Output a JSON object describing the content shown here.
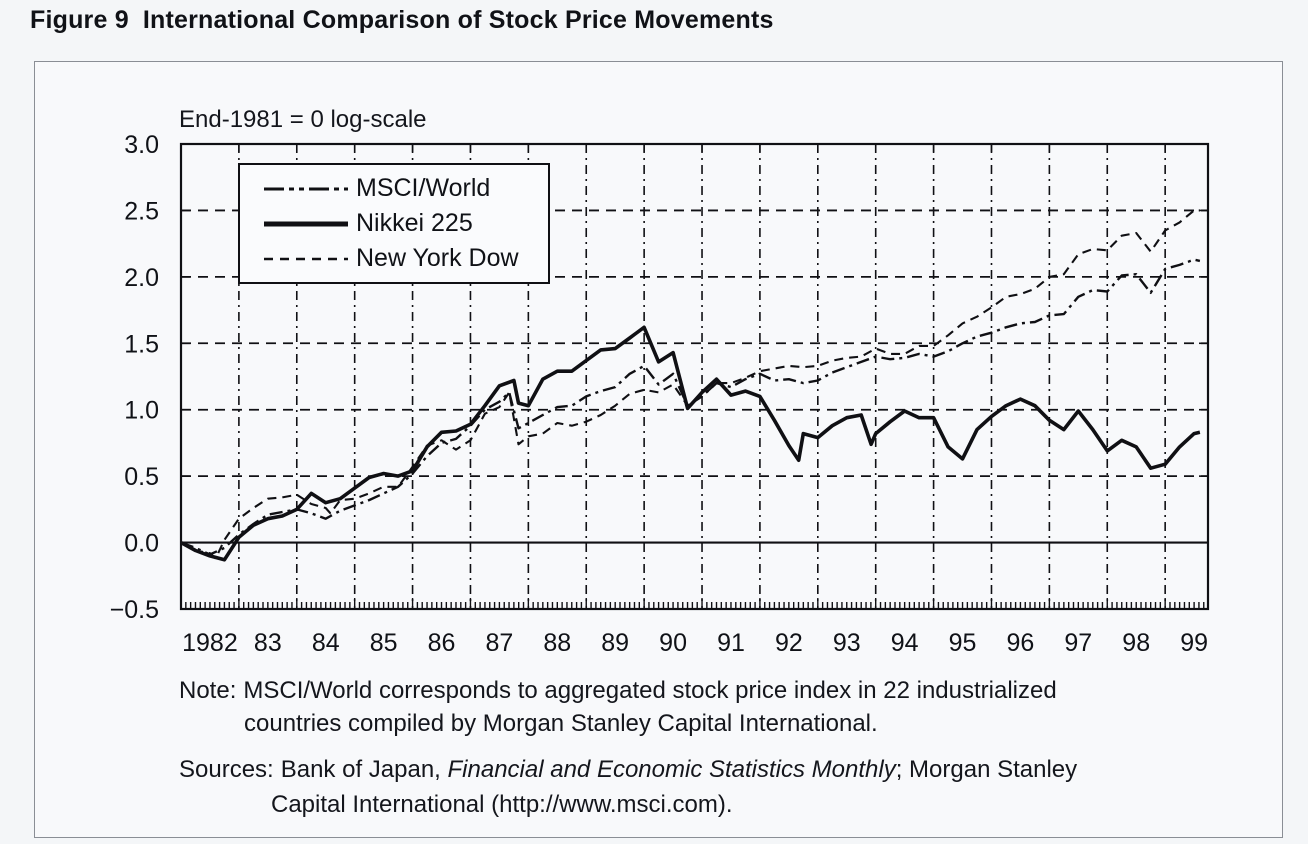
{
  "figure": {
    "title_label": "Figure 9",
    "title_text": "International Comparison of Stock Price Movements",
    "annotation": "End-1981 = 0 log-scale",
    "note": {
      "label": "Note:",
      "line1": "MSCI/World corresponds to aggregated stock price index in 22 industrialized",
      "line2": "countries compiled by Morgan Stanley Capital International."
    },
    "sources": {
      "label": "Sources:",
      "part1": "Bank of Japan,",
      "italic": "Financial and Economic Statistics Monthly",
      "part2": "; Morgan Stanley",
      "line2": "Capital International (http://www.msci.com)."
    }
  },
  "colors": {
    "line": "#101014",
    "text": "#14161c",
    "panel_border": "#8a8e95",
    "background": "#f4f6f8",
    "panel_bg": "#f8f9fb"
  },
  "chart_data": {
    "type": "line",
    "title": "Figure 9 International Comparison of Stock Price Movements",
    "annotation": "End-1981 = 0 log-scale",
    "xlabel": "",
    "ylabel": "",
    "ylim": [
      -0.5,
      3.0
    ],
    "xlim": [
      1982,
      1999.74
    ],
    "grid": "dashed horizontal at 0.5 steps, dash-dot vertical at each year, solid line at 0.0",
    "legend_position": "top-left inside plot",
    "y_ticks": {
      "values": [
        3.0,
        2.5,
        2.0,
        1.5,
        1.0,
        0.5,
        0.0,
        -0.5
      ],
      "labels": [
        "3.0",
        "2.5",
        "2.0",
        "1.5",
        "1.0",
        "0.5",
        "0.0",
        "−0.5"
      ]
    },
    "x_ticks": {
      "years": [
        1982,
        1983,
        1984,
        1985,
        1986,
        1987,
        1988,
        1989,
        1990,
        1991,
        1992,
        1993,
        1994,
        1995,
        1996,
        1997,
        1998,
        1999
      ],
      "labels": [
        "1982",
        "83",
        "84",
        "85",
        "86",
        "87",
        "88",
        "89",
        "90",
        "91",
        "92",
        "93",
        "94",
        "95",
        "96",
        "97",
        "98",
        "99"
      ]
    },
    "legend": {
      "items": [
        {
          "label": "MSCI/World",
          "pattern": "dash-dot"
        },
        {
          "label": "Nikkei 225",
          "pattern": "solid"
        },
        {
          "label": "New York Dow",
          "pattern": "dash"
        }
      ]
    },
    "series": [
      {
        "name": "New York Dow",
        "pattern": "dash",
        "points": [
          [
            1982,
            0
          ],
          [
            1982.25,
            -0.06
          ],
          [
            1982.5,
            -0.08
          ],
          [
            1982.6,
            -0.12
          ],
          [
            1982.75,
            0.02
          ],
          [
            1983,
            0.18
          ],
          [
            1983.25,
            0.26
          ],
          [
            1983.5,
            0.33
          ],
          [
            1983.75,
            0.34
          ],
          [
            1984,
            0.36
          ],
          [
            1984.25,
            0.29
          ],
          [
            1984.5,
            0.26
          ],
          [
            1984.58,
            0.22
          ],
          [
            1984.75,
            0.32
          ],
          [
            1985,
            0.33
          ],
          [
            1985.25,
            0.37
          ],
          [
            1985.5,
            0.42
          ],
          [
            1985.75,
            0.42
          ],
          [
            1986,
            0.57
          ],
          [
            1986.25,
            0.73
          ],
          [
            1986.5,
            0.77
          ],
          [
            1986.75,
            0.7
          ],
          [
            1987,
            0.77
          ],
          [
            1987.25,
            0.97
          ],
          [
            1987.5,
            1.02
          ],
          [
            1987.67,
            1.13
          ],
          [
            1987.83,
            0.74
          ],
          [
            1988,
            0.8
          ],
          [
            1988.25,
            0.82
          ],
          [
            1988.5,
            0.9
          ],
          [
            1988.75,
            0.88
          ],
          [
            1989,
            0.91
          ],
          [
            1989.25,
            0.96
          ],
          [
            1989.5,
            1.03
          ],
          [
            1989.75,
            1.12
          ],
          [
            1990,
            1.15
          ],
          [
            1990.25,
            1.13
          ],
          [
            1990.5,
            1.19
          ],
          [
            1990.75,
            1.03
          ],
          [
            1991,
            1.1
          ],
          [
            1991.25,
            1.2
          ],
          [
            1991.5,
            1.2
          ],
          [
            1991.75,
            1.24
          ],
          [
            1992,
            1.29
          ],
          [
            1992.25,
            1.31
          ],
          [
            1992.5,
            1.33
          ],
          [
            1992.75,
            1.32
          ],
          [
            1993,
            1.33
          ],
          [
            1993.25,
            1.37
          ],
          [
            1993.5,
            1.39
          ],
          [
            1993.75,
            1.4
          ],
          [
            1994,
            1.46
          ],
          [
            1994.25,
            1.42
          ],
          [
            1994.5,
            1.42
          ],
          [
            1994.75,
            1.48
          ],
          [
            1995,
            1.48
          ],
          [
            1995.25,
            1.56
          ],
          [
            1995.5,
            1.65
          ],
          [
            1995.75,
            1.7
          ],
          [
            1996,
            1.77
          ],
          [
            1996.25,
            1.85
          ],
          [
            1996.5,
            1.87
          ],
          [
            1996.75,
            1.91
          ],
          [
            1997,
            2.0
          ],
          [
            1997.25,
            2.02
          ],
          [
            1997.5,
            2.17
          ],
          [
            1997.75,
            2.21
          ],
          [
            1998,
            2.2
          ],
          [
            1998.25,
            2.31
          ],
          [
            1998.5,
            2.33
          ],
          [
            1998.75,
            2.19
          ],
          [
            1999,
            2.35
          ],
          [
            1999.25,
            2.41
          ],
          [
            1999.5,
            2.5
          ],
          [
            1999.6,
            2.5
          ]
        ]
      },
      {
        "name": "MSCI/World",
        "pattern": "dash-dot",
        "points": [
          [
            1982,
            0
          ],
          [
            1982.25,
            -0.04
          ],
          [
            1982.5,
            -0.09
          ],
          [
            1982.75,
            -0.04
          ],
          [
            1983,
            0.06
          ],
          [
            1983.25,
            0.14
          ],
          [
            1983.5,
            0.21
          ],
          [
            1983.75,
            0.23
          ],
          [
            1984,
            0.25
          ],
          [
            1984.25,
            0.22
          ],
          [
            1984.5,
            0.18
          ],
          [
            1984.75,
            0.24
          ],
          [
            1985,
            0.28
          ],
          [
            1985.25,
            0.32
          ],
          [
            1985.5,
            0.37
          ],
          [
            1985.75,
            0.42
          ],
          [
            1986,
            0.52
          ],
          [
            1986.25,
            0.65
          ],
          [
            1986.5,
            0.75
          ],
          [
            1986.75,
            0.78
          ],
          [
            1987,
            0.88
          ],
          [
            1987.25,
            1.0
          ],
          [
            1987.5,
            1.06
          ],
          [
            1987.67,
            1.13
          ],
          [
            1987.83,
            0.86
          ],
          [
            1988,
            0.9
          ],
          [
            1988.25,
            0.96
          ],
          [
            1988.5,
            1.02
          ],
          [
            1988.75,
            1.03
          ],
          [
            1989,
            1.1
          ],
          [
            1989.25,
            1.14
          ],
          [
            1989.5,
            1.17
          ],
          [
            1989.75,
            1.27
          ],
          [
            1990,
            1.33
          ],
          [
            1990.25,
            1.19
          ],
          [
            1990.5,
            1.27
          ],
          [
            1990.75,
            1.03
          ],
          [
            1991,
            1.1
          ],
          [
            1991.25,
            1.2
          ],
          [
            1991.5,
            1.17
          ],
          [
            1991.75,
            1.23
          ],
          [
            1992,
            1.27
          ],
          [
            1992.25,
            1.22
          ],
          [
            1992.5,
            1.23
          ],
          [
            1992.75,
            1.2
          ],
          [
            1993,
            1.22
          ],
          [
            1993.25,
            1.28
          ],
          [
            1993.5,
            1.32
          ],
          [
            1993.75,
            1.36
          ],
          [
            1994,
            1.4
          ],
          [
            1994.25,
            1.38
          ],
          [
            1994.5,
            1.39
          ],
          [
            1994.75,
            1.42
          ],
          [
            1995,
            1.4
          ],
          [
            1995.25,
            1.44
          ],
          [
            1995.5,
            1.5
          ],
          [
            1995.75,
            1.55
          ],
          [
            1996,
            1.58
          ],
          [
            1996.25,
            1.62
          ],
          [
            1996.5,
            1.65
          ],
          [
            1996.75,
            1.66
          ],
          [
            1997,
            1.71
          ],
          [
            1997.25,
            1.72
          ],
          [
            1997.5,
            1.85
          ],
          [
            1997.75,
            1.9
          ],
          [
            1998,
            1.89
          ],
          [
            1998.25,
            2.01
          ],
          [
            1998.5,
            2.02
          ],
          [
            1998.75,
            1.88
          ],
          [
            1999,
            2.06
          ],
          [
            1999.25,
            2.09
          ],
          [
            1999.5,
            2.13
          ],
          [
            1999.6,
            2.12
          ]
        ]
      },
      {
        "name": "Nikkei 225",
        "pattern": "solid",
        "points": [
          [
            1982,
            0
          ],
          [
            1982.25,
            -0.06
          ],
          [
            1982.5,
            -0.1
          ],
          [
            1982.75,
            -0.13
          ],
          [
            1983,
            0.04
          ],
          [
            1983.25,
            0.13
          ],
          [
            1983.5,
            0.18
          ],
          [
            1983.75,
            0.2
          ],
          [
            1984,
            0.25
          ],
          [
            1984.25,
            0.37
          ],
          [
            1984.5,
            0.3
          ],
          [
            1984.75,
            0.33
          ],
          [
            1985,
            0.41
          ],
          [
            1985.25,
            0.49
          ],
          [
            1985.5,
            0.52
          ],
          [
            1985.75,
            0.5
          ],
          [
            1986,
            0.54
          ],
          [
            1986.25,
            0.72
          ],
          [
            1986.5,
            0.83
          ],
          [
            1986.75,
            0.84
          ],
          [
            1987,
            0.89
          ],
          [
            1987.25,
            1.03
          ],
          [
            1987.5,
            1.18
          ],
          [
            1987.75,
            1.22
          ],
          [
            1987.83,
            1.05
          ],
          [
            1988,
            1.03
          ],
          [
            1988.25,
            1.23
          ],
          [
            1988.5,
            1.29
          ],
          [
            1988.75,
            1.29
          ],
          [
            1989,
            1.37
          ],
          [
            1989.25,
            1.45
          ],
          [
            1989.5,
            1.46
          ],
          [
            1989.75,
            1.54
          ],
          [
            1990,
            1.62
          ],
          [
            1990.25,
            1.36
          ],
          [
            1990.5,
            1.43
          ],
          [
            1990.75,
            1.01
          ],
          [
            1991,
            1.13
          ],
          [
            1991.25,
            1.23
          ],
          [
            1991.5,
            1.11
          ],
          [
            1991.75,
            1.14
          ],
          [
            1992,
            1.1
          ],
          [
            1992.25,
            0.92
          ],
          [
            1992.5,
            0.73
          ],
          [
            1992.67,
            0.62
          ],
          [
            1992.75,
            0.82
          ],
          [
            1993,
            0.79
          ],
          [
            1993.25,
            0.88
          ],
          [
            1993.5,
            0.94
          ],
          [
            1993.75,
            0.96
          ],
          [
            1993.92,
            0.74
          ],
          [
            1994,
            0.82
          ],
          [
            1994.25,
            0.91
          ],
          [
            1994.5,
            0.99
          ],
          [
            1994.75,
            0.94
          ],
          [
            1995,
            0.94
          ],
          [
            1995.25,
            0.72
          ],
          [
            1995.5,
            0.63
          ],
          [
            1995.75,
            0.85
          ],
          [
            1996,
            0.95
          ],
          [
            1996.25,
            1.03
          ],
          [
            1996.5,
            1.08
          ],
          [
            1996.75,
            1.03
          ],
          [
            1997,
            0.92
          ],
          [
            1997.25,
            0.85
          ],
          [
            1997.5,
            0.99
          ],
          [
            1997.75,
            0.85
          ],
          [
            1998,
            0.69
          ],
          [
            1998.25,
            0.77
          ],
          [
            1998.5,
            0.72
          ],
          [
            1998.75,
            0.56
          ],
          [
            1999,
            0.59
          ],
          [
            1999.25,
            0.72
          ],
          [
            1999.5,
            0.82
          ],
          [
            1999.6,
            0.83
          ]
        ]
      }
    ]
  }
}
